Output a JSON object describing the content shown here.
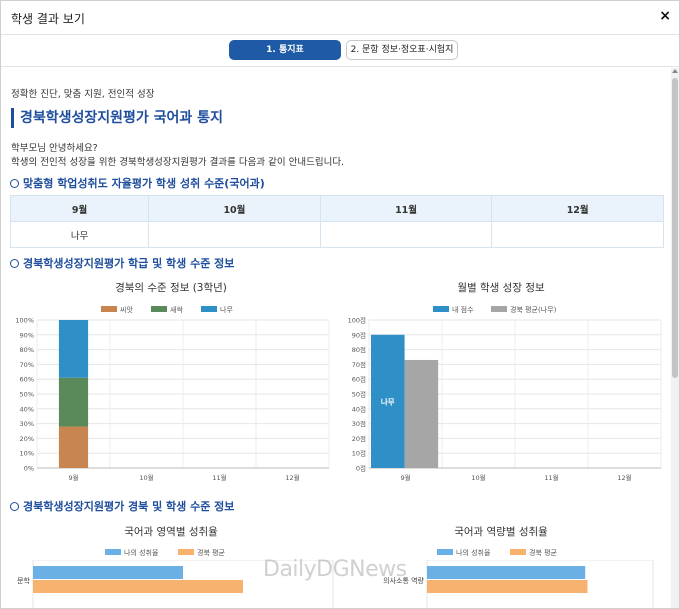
{
  "window": {
    "title": "학생 결과 보기",
    "close_glyph": "×"
  },
  "tabs": [
    {
      "label": "1. 통지표",
      "active": true
    },
    {
      "label": "2. 문항 정보·정오표·시험지",
      "active": false
    }
  ],
  "intro": {
    "tagline": "정확한 진단, 맞춤 지원, 전인적 성장",
    "heading": "경북학생성장지원평가 국어과 통지",
    "greeting": "학부모님 안녕하세요?",
    "greeting_body": "학생의 전인적 성장을 위한 경북학생성장지원평가 결과를 다음과 같이 안내드립니다."
  },
  "sections": {
    "s1": "맞춤형 학업성취도 자율평가 학생 성취 수준(국어과)",
    "s2": "경북학생성장지원평가 학급 및 학생 수준 정보",
    "s3": "경북학생성장지원평가 경북 및 학생 수준 정보"
  },
  "level_table": {
    "headers": [
      "9월",
      "10월",
      "11월",
      "12월"
    ],
    "values": [
      "나무",
      "",
      "",
      ""
    ]
  },
  "colors": {
    "accent": "#1f4e9c",
    "tab_active": "#1f5aa6",
    "ssak": "#c8854f",
    "saessak": "#5b8a5a",
    "namu": "#2f8fc7",
    "my_score": "#2f8fc7",
    "gb_avg": "#a6a6a6",
    "my_rate": "#6ab0e4",
    "gb_rate": "#f7b26f"
  },
  "chart_data": [
    {
      "type": "bar",
      "stacked": true,
      "title": "경북의 수준 정보 (3학년)",
      "categories": [
        "9월",
        "10월",
        "11월",
        "12월"
      ],
      "series": [
        {
          "name": "씨앗",
          "values": [
            28,
            0,
            0,
            0
          ]
        },
        {
          "name": "새싹",
          "values": [
            33,
            0,
            0,
            0
          ]
        },
        {
          "name": "나무",
          "values": [
            39,
            0,
            0,
            0
          ]
        }
      ],
      "yticks": [
        "0%",
        "10%",
        "20%",
        "30%",
        "40%",
        "50%",
        "60%",
        "70%",
        "80%",
        "90%",
        "100%"
      ],
      "ylim": [
        0,
        100
      ],
      "legend": "top",
      "grid": true
    },
    {
      "type": "bar",
      "title": "월별 학생 성장 정보",
      "categories": [
        "9월",
        "10월",
        "11월",
        "12월"
      ],
      "series": [
        {
          "name": "내 점수",
          "values": [
            90,
            null,
            null,
            null
          ]
        },
        {
          "name": "경북 평균(나무)",
          "values": [
            73,
            null,
            null,
            null
          ]
        }
      ],
      "bar_labels": [
        "나무",
        "",
        "",
        ""
      ],
      "yticks": [
        "0점",
        "10점",
        "20점",
        "30점",
        "40점",
        "50점",
        "60점",
        "70점",
        "80점",
        "90점",
        "100점"
      ],
      "ylim": [
        0,
        100
      ],
      "legend": "top",
      "grid": true
    },
    {
      "type": "bar",
      "orientation": "horizontal",
      "title": "국어과 영역별 성취율",
      "categories": [
        "문학"
      ],
      "series": [
        {
          "name": "나의 성취율",
          "values": [
            50
          ]
        },
        {
          "name": "경북 평균",
          "values": [
            70
          ]
        }
      ],
      "legend": "top"
    },
    {
      "type": "bar",
      "orientation": "horizontal",
      "title": "국어과 역량별 성취율",
      "categories": [
        "의사소통 역량"
      ],
      "series": [
        {
          "name": "나의 성취율",
          "values": [
            70
          ]
        },
        {
          "name": "경북 평균",
          "values": [
            71
          ]
        }
      ],
      "legend": "top"
    }
  ],
  "watermark": "DailyDGNews"
}
